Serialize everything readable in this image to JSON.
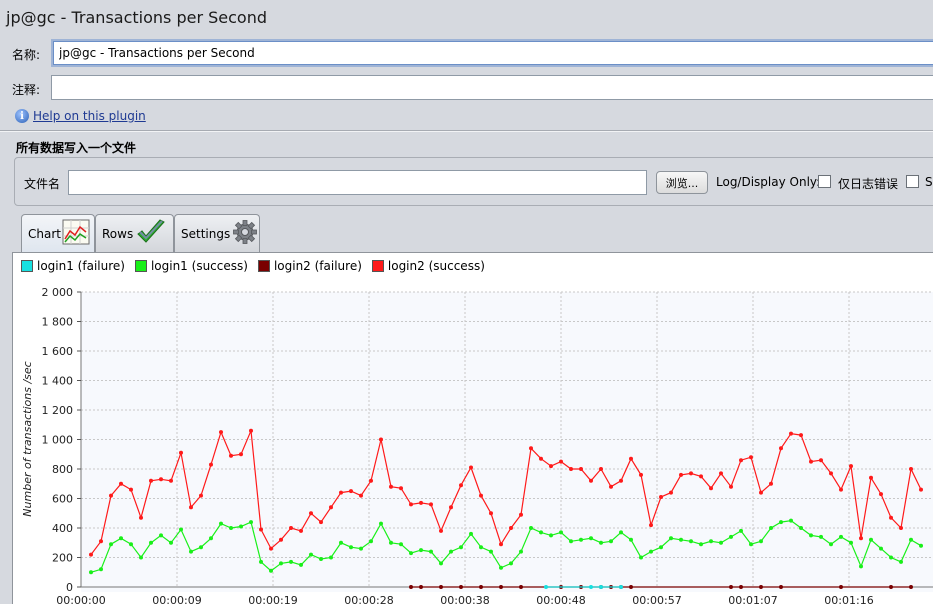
{
  "window": {
    "title": "jp@gc - Transactions per Second"
  },
  "form": {
    "name_label": "名称:",
    "name_value": "jp@gc - Transactions per Second",
    "comment_label": "注释:",
    "comment_value": "",
    "help_link": "Help on this plugin"
  },
  "file_section": {
    "title": "所有数据写入一个文件",
    "filename_label": "文件名",
    "filename_value": "",
    "browse_label": "浏览...",
    "log_display_label": "Log/Display Only:",
    "errors_only_label": "仅日志错误",
    "successes_label": "S"
  },
  "tabs": [
    {
      "label": "Chart",
      "icon": "chart-icon"
    },
    {
      "label": "Rows",
      "icon": "checkmark-icon"
    },
    {
      "label": "Settings",
      "icon": "gear-icon"
    }
  ],
  "colors": {
    "login1_failure": "#18e0e0",
    "login1_success": "#19f019",
    "login2_failure": "#7a0000",
    "login2_success": "#ff1a1a",
    "grid": "#c8c8c8"
  },
  "chart_data": {
    "type": "line",
    "ylabel": "Number of transactions /sec",
    "ylim": [
      0,
      2000
    ],
    "y_ticks": [
      "0",
      "200",
      "400",
      "600",
      "800",
      "1 000",
      "1 200",
      "1 400",
      "1 600",
      "1 800",
      "2 000"
    ],
    "x_tick_labels": [
      "00:00:00",
      "00:00:09",
      "00:00:19",
      "00:00:28",
      "00:00:38",
      "00:00:48",
      "00:00:57",
      "00:01:07",
      "00:01:16"
    ],
    "x_range_seconds": [
      0,
      86
    ],
    "legend_placement": "top-left",
    "series": [
      {
        "name": "login1 (failure)",
        "color_key": "login1_failure",
        "points": [
          [
            46.5,
            0
          ],
          [
            51,
            0
          ],
          [
            52,
            0
          ],
          [
            54,
            0
          ]
        ]
      },
      {
        "name": "login1 (success)",
        "color_key": "login1_success",
        "points": [
          [
            1,
            100
          ],
          [
            2,
            120
          ],
          [
            3,
            290
          ],
          [
            4,
            330
          ],
          [
            5,
            290
          ],
          [
            6,
            200
          ],
          [
            7,
            300
          ],
          [
            8,
            350
          ],
          [
            9,
            300
          ],
          [
            10,
            390
          ],
          [
            11,
            240
          ],
          [
            12,
            270
          ],
          [
            13,
            330
          ],
          [
            14,
            430
          ],
          [
            15,
            400
          ],
          [
            16,
            410
          ],
          [
            17,
            440
          ],
          [
            18,
            170
          ],
          [
            19,
            110
          ],
          [
            20,
            160
          ],
          [
            21,
            170
          ],
          [
            22,
            150
          ],
          [
            23,
            220
          ],
          [
            24,
            190
          ],
          [
            25,
            200
          ],
          [
            26,
            300
          ],
          [
            27,
            270
          ],
          [
            28,
            260
          ],
          [
            29,
            310
          ],
          [
            30,
            430
          ],
          [
            31,
            300
          ],
          [
            32,
            290
          ],
          [
            33,
            230
          ],
          [
            34,
            250
          ],
          [
            35,
            240
          ],
          [
            36,
            160
          ],
          [
            37,
            240
          ],
          [
            38,
            270
          ],
          [
            39,
            360
          ],
          [
            40,
            270
          ],
          [
            41,
            240
          ],
          [
            42,
            130
          ],
          [
            43,
            160
          ],
          [
            44,
            240
          ],
          [
            45,
            400
          ],
          [
            46,
            370
          ],
          [
            47,
            350
          ],
          [
            48,
            370
          ],
          [
            49,
            310
          ],
          [
            50,
            320
          ],
          [
            51,
            330
          ],
          [
            52,
            300
          ],
          [
            53,
            310
          ],
          [
            54,
            370
          ],
          [
            55,
            320
          ],
          [
            56,
            200
          ],
          [
            57,
            240
          ],
          [
            58,
            270
          ],
          [
            59,
            330
          ],
          [
            60,
            320
          ],
          [
            61,
            310
          ],
          [
            62,
            290
          ],
          [
            63,
            310
          ],
          [
            64,
            300
          ],
          [
            65,
            340
          ],
          [
            66,
            380
          ],
          [
            67,
            290
          ],
          [
            68,
            310
          ],
          [
            69,
            400
          ],
          [
            70,
            440
          ],
          [
            71,
            450
          ],
          [
            72,
            400
          ],
          [
            73,
            350
          ],
          [
            74,
            340
          ],
          [
            75,
            290
          ],
          [
            76,
            340
          ],
          [
            77,
            300
          ],
          [
            78,
            140
          ],
          [
            79,
            320
          ],
          [
            80,
            260
          ],
          [
            81,
            200
          ],
          [
            82,
            170
          ],
          [
            83,
            320
          ],
          [
            84,
            280
          ]
        ]
      },
      {
        "name": "login2 (failure)",
        "color_key": "login2_failure",
        "points": [
          [
            33,
            0
          ],
          [
            34,
            0
          ],
          [
            36,
            0
          ],
          [
            38,
            0
          ],
          [
            40,
            0
          ],
          [
            42,
            0
          ],
          [
            44,
            0
          ],
          [
            48,
            0
          ],
          [
            50,
            0
          ],
          [
            52,
            0
          ],
          [
            53,
            0
          ],
          [
            54,
            0
          ],
          [
            55,
            0
          ],
          [
            65,
            0
          ],
          [
            66,
            0
          ],
          [
            68,
            0
          ],
          [
            70,
            0
          ],
          [
            76,
            0
          ],
          [
            81,
            0
          ],
          [
            83,
            0
          ]
        ]
      },
      {
        "name": "login2 (success)",
        "color_key": "login2_success",
        "points": [
          [
            1,
            220
          ],
          [
            2,
            310
          ],
          [
            3,
            620
          ],
          [
            4,
            700
          ],
          [
            5,
            660
          ],
          [
            6,
            470
          ],
          [
            7,
            720
          ],
          [
            8,
            730
          ],
          [
            9,
            720
          ],
          [
            10,
            910
          ],
          [
            11,
            540
          ],
          [
            12,
            620
          ],
          [
            13,
            830
          ],
          [
            14,
            1050
          ],
          [
            15,
            890
          ],
          [
            16,
            900
          ],
          [
            17,
            1060
          ],
          [
            18,
            390
          ],
          [
            19,
            260
          ],
          [
            20,
            320
          ],
          [
            21,
            400
          ],
          [
            22,
            380
          ],
          [
            23,
            500
          ],
          [
            24,
            440
          ],
          [
            25,
            540
          ],
          [
            26,
            640
          ],
          [
            27,
            650
          ],
          [
            28,
            620
          ],
          [
            29,
            720
          ],
          [
            30,
            1000
          ],
          [
            31,
            680
          ],
          [
            32,
            670
          ],
          [
            33,
            560
          ],
          [
            34,
            570
          ],
          [
            35,
            560
          ],
          [
            36,
            380
          ],
          [
            37,
            540
          ],
          [
            38,
            690
          ],
          [
            39,
            810
          ],
          [
            40,
            620
          ],
          [
            41,
            500
          ],
          [
            42,
            290
          ],
          [
            43,
            400
          ],
          [
            44,
            490
          ],
          [
            45,
            940
          ],
          [
            46,
            870
          ],
          [
            47,
            820
          ],
          [
            48,
            850
          ],
          [
            49,
            800
          ],
          [
            50,
            800
          ],
          [
            51,
            720
          ],
          [
            52,
            800
          ],
          [
            53,
            680
          ],
          [
            54,
            720
          ],
          [
            55,
            870
          ],
          [
            56,
            760
          ],
          [
            57,
            420
          ],
          [
            58,
            610
          ],
          [
            59,
            640
          ],
          [
            60,
            760
          ],
          [
            61,
            770
          ],
          [
            62,
            750
          ],
          [
            63,
            670
          ],
          [
            64,
            770
          ],
          [
            65,
            680
          ],
          [
            66,
            860
          ],
          [
            67,
            880
          ],
          [
            68,
            640
          ],
          [
            69,
            700
          ],
          [
            70,
            940
          ],
          [
            71,
            1040
          ],
          [
            72,
            1030
          ],
          [
            73,
            850
          ],
          [
            74,
            860
          ],
          [
            75,
            770
          ],
          [
            76,
            660
          ],
          [
            77,
            820
          ],
          [
            78,
            330
          ],
          [
            79,
            740
          ],
          [
            80,
            630
          ],
          [
            81,
            470
          ],
          [
            82,
            400
          ],
          [
            83,
            800
          ],
          [
            84,
            660
          ]
        ]
      }
    ]
  }
}
